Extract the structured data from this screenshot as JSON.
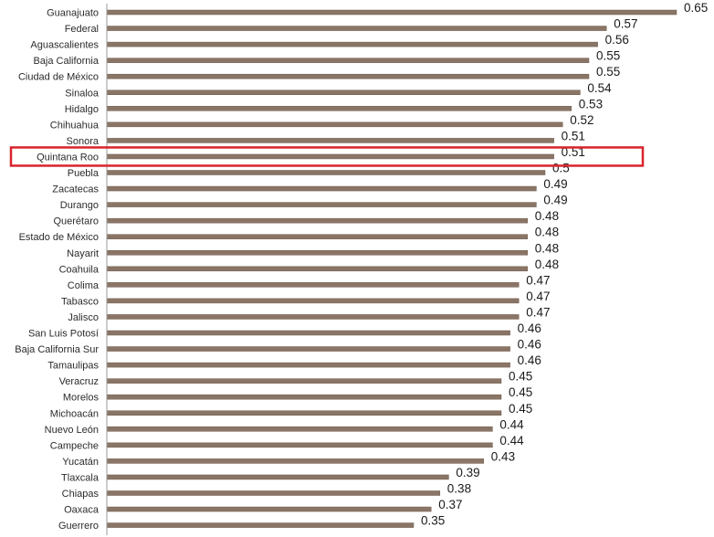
{
  "chart_data": {
    "type": "bar",
    "orientation": "horizontal",
    "categories": [
      "Guanajuato",
      "Federal",
      "Aguascalientes",
      "Baja California",
      "Ciudad de México",
      "Sinaloa",
      "Hidalgo",
      "Chihuahua",
      "Sonora",
      "Quintana Roo",
      "Puebla",
      "Zacatecas",
      "Durango",
      "Querétaro",
      "Estado de México",
      "Nayarit",
      "Coahuila",
      "Colima",
      "Tabasco",
      "Jalisco",
      "San Luis Potosí",
      "Baja California Sur",
      "Tamaulipas",
      "Veracruz",
      "Morelos",
      "Michoacán",
      "Nuevo León",
      "Campeche",
      "Yucatán",
      "Tlaxcala",
      "Chiapas",
      "Oaxaca",
      "Guerrero"
    ],
    "values": [
      0.65,
      0.57,
      0.56,
      0.55,
      0.55,
      0.54,
      0.53,
      0.52,
      0.51,
      0.51,
      0.5,
      0.49,
      0.49,
      0.48,
      0.48,
      0.48,
      0.48,
      0.47,
      0.47,
      0.47,
      0.46,
      0.46,
      0.46,
      0.45,
      0.45,
      0.45,
      0.44,
      0.44,
      0.43,
      0.39,
      0.38,
      0.37,
      0.35
    ],
    "value_labels": [
      "0.65",
      "0.57",
      "0.56",
      "0.55",
      "0.55",
      "0.54",
      "0.53",
      "0.52",
      "0.51",
      "0.51",
      "0.5",
      "0.49",
      "0.49",
      "0.48",
      "0.48",
      "0.48",
      "0.48",
      "0.47",
      "0.47",
      "0.47",
      "0.46",
      "0.46",
      "0.46",
      "0.45",
      "0.45",
      "0.45",
      "0.44",
      "0.44",
      "0.43",
      "0.39",
      "0.38",
      "0.37",
      "0.35"
    ],
    "highlighted_category": "Quintana Roo",
    "xlim": [
      0,
      0.65
    ],
    "title": "",
    "xlabel": "",
    "ylabel": "",
    "grid": false,
    "colors": {
      "bar": "#8a7566",
      "bar_edge": "#6e5a4c",
      "highlight_box": "#d9232d",
      "axis": "#9a9a9a"
    }
  }
}
